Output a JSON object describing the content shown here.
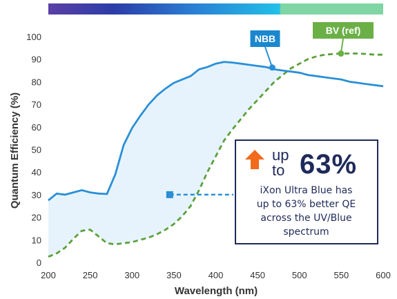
{
  "chart_data": {
    "type": "line",
    "title": "",
    "xlabel": "Wavelength (nm)",
    "ylabel": "Quantum Efficiency (%)",
    "xlim": [
      200,
      600
    ],
    "ylim": [
      0,
      100
    ],
    "xticks": [
      200,
      250,
      300,
      350,
      400,
      450,
      500,
      550,
      600
    ],
    "yticks": [
      0,
      10,
      20,
      30,
      40,
      50,
      60,
      70,
      80,
      90,
      100
    ],
    "grid": false,
    "series": [
      {
        "name": "NBB",
        "style": "solid",
        "color": "#2a8fd6",
        "x": [
          200,
          210,
          220,
          230,
          240,
          250,
          260,
          270,
          280,
          290,
          300,
          310,
          320,
          330,
          340,
          350,
          360,
          370,
          380,
          390,
          400,
          410,
          420,
          430,
          440,
          450,
          460,
          470,
          480,
          490,
          500,
          510,
          520,
          530,
          540,
          550,
          560,
          570,
          580,
          590,
          600
        ],
        "values": [
          27.5,
          30.5,
          30,
          31,
          32,
          31,
          30.5,
          30.3,
          39,
          52,
          59.5,
          65,
          70,
          74,
          77,
          79.5,
          81,
          82.5,
          85.5,
          86.5,
          88,
          88.8,
          88.5,
          88,
          87.5,
          87,
          86.5,
          85.5,
          85,
          84.5,
          84,
          83,
          82.5,
          82,
          81.5,
          81,
          80,
          79.5,
          79,
          78.5,
          78
        ]
      },
      {
        "name": "BV (ref)",
        "style": "dashed",
        "color": "#5aa03c",
        "x": [
          200,
          210,
          220,
          230,
          240,
          250,
          260,
          270,
          280,
          290,
          300,
          310,
          320,
          330,
          340,
          350,
          360,
          370,
          380,
          390,
          400,
          410,
          420,
          430,
          440,
          450,
          460,
          470,
          480,
          490,
          500,
          510,
          520,
          530,
          540,
          550,
          560,
          570,
          580,
          590,
          600
        ],
        "values": [
          2.5,
          4,
          6.5,
          10.5,
          14,
          14.5,
          11.5,
          8.5,
          8,
          8.5,
          9,
          10,
          11,
          12.5,
          14.5,
          17,
          20.5,
          25,
          32,
          40,
          47,
          54,
          59,
          63.5,
          68,
          72,
          76,
          80,
          83,
          86,
          88,
          90,
          91.2,
          92,
          92.3,
          92.5,
          92.5,
          92.5,
          92.3,
          92,
          92
        ]
      }
    ],
    "labels": {
      "nbb": "NBB",
      "bv": "BV (ref)"
    },
    "annotation": {
      "up": "up",
      "to": "to",
      "percent": "63%",
      "lines": [
        "iXon Ultra Blue has",
        "up to 63% better QE",
        "across the UV/Blue",
        "spectrum"
      ],
      "pointer_x": 345,
      "pointer_y": 30
    },
    "spectrum_bar_colors": [
      "#5b3fa6",
      "#2b3da8",
      "#2a7fd4",
      "#22c0e8",
      "#7fd6a4"
    ],
    "colors": {
      "nbb_label_bg": "#1a87cf",
      "bv_label_bg": "#6bb046",
      "fill": "#e6f3fc",
      "text": "#333333",
      "callout_border": "#1f2a5a",
      "arrow": "#f26a1b",
      "pointer": "#2a8fd6"
    }
  }
}
